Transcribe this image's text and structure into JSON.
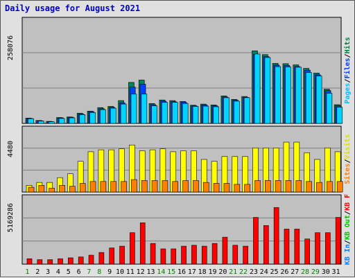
{
  "title": "Daily usage for August 2021",
  "chart_data": [
    {
      "type": "bar",
      "categories": [
        "1",
        "2",
        "3",
        "4",
        "5",
        "6",
        "7",
        "8",
        "9",
        "10",
        "11",
        "12",
        "13",
        "14",
        "15",
        "16",
        "17",
        "18",
        "19",
        "20",
        "21",
        "22",
        "23",
        "24",
        "25",
        "26",
        "27",
        "28",
        "29",
        "30",
        "31"
      ],
      "weekend_days": [
        "1",
        "7",
        "8",
        "14",
        "15",
        "21",
        "22",
        "28",
        "29"
      ],
      "ymax_label": "258076",
      "ymax": 258076,
      "right_labels": [
        {
          "text": "Hits",
          "color": "#008040"
        },
        {
          "text": "/",
          "color": "#000000"
        },
        {
          "text": "Files",
          "color": "#0040ff"
        },
        {
          "text": "/",
          "color": "#000000"
        },
        {
          "text": "Pages",
          "color": "#00c0ff"
        }
      ],
      "series": [
        {
          "name": "Hits",
          "color": "#00805c",
          "values": [
            18000,
            10000,
            7000,
            20000,
            22000,
            35000,
            42000,
            54000,
            58000,
            78000,
            140000,
            148000,
            68000,
            80000,
            78000,
            75000,
            62000,
            66000,
            63000,
            94000,
            82000,
            92000,
            248000,
            235000,
            205000,
            204000,
            200000,
            188000,
            172000,
            117000,
            64000
          ]
        },
        {
          "name": "Files",
          "color": "#0040ff",
          "values": [
            17000,
            9000,
            6000,
            19000,
            21000,
            32000,
            40000,
            50000,
            55000,
            70000,
            124000,
            134000,
            64000,
            76000,
            74000,
            72000,
            60000,
            63000,
            60000,
            90000,
            79000,
            89000,
            236000,
            228000,
            199000,
            198000,
            194000,
            182000,
            166000,
            112000,
            60000
          ]
        },
        {
          "name": "Pages",
          "color": "#00d4ff",
          "values": [
            16000,
            8000,
            5500,
            17000,
            19000,
            30000,
            37000,
            47000,
            52000,
            66000,
            100000,
            100000,
            60000,
            72000,
            72000,
            68000,
            58000,
            59000,
            57000,
            88000,
            76000,
            88000,
            237000,
            225000,
            194000,
            193000,
            192000,
            174000,
            162000,
            103000,
            55000
          ]
        }
      ]
    },
    {
      "type": "bar",
      "categories": [
        "1",
        "2",
        "3",
        "4",
        "5",
        "6",
        "7",
        "8",
        "9",
        "10",
        "11",
        "12",
        "13",
        "14",
        "15",
        "16",
        "17",
        "18",
        "19",
        "20",
        "21",
        "22",
        "23",
        "24",
        "25",
        "26",
        "27",
        "28",
        "29",
        "30",
        "31"
      ],
      "ymax_label": "4480",
      "ymax": 4480,
      "right_labels": [
        {
          "text": "Visits",
          "color": "#e0e000"
        },
        {
          "text": "/",
          "color": "#000000"
        },
        {
          "text": "Sites",
          "color": "#ff8000"
        }
      ],
      "series": [
        {
          "name": "Visits",
          "color": "#ffff00",
          "values": [
            700,
            1000,
            1000,
            1500,
            1900,
            3200,
            4200,
            4400,
            4400,
            4500,
            4900,
            4300,
            4400,
            4500,
            4200,
            4300,
            4300,
            3400,
            3200,
            3700,
            3700,
            3700,
            4600,
            4600,
            4600,
            5200,
            5200,
            4100,
            3400,
            4600,
            4200
          ]
        },
        {
          "name": "Sites",
          "color": "#ff8000",
          "values": [
            500,
            700,
            400,
            700,
            600,
            900,
            1100,
            1100,
            1100,
            1100,
            1300,
            1200,
            1200,
            1200,
            1100,
            1200,
            1200,
            1000,
            900,
            900,
            800,
            800,
            1200,
            1200,
            1200,
            1200,
            1200,
            1100,
            1000,
            1100,
            1100
          ]
        }
      ]
    },
    {
      "type": "bar",
      "categories": [
        "1",
        "2",
        "3",
        "4",
        "5",
        "6",
        "7",
        "8",
        "9",
        "10",
        "11",
        "12",
        "13",
        "14",
        "15",
        "16",
        "17",
        "18",
        "19",
        "20",
        "21",
        "22",
        "23",
        "24",
        "25",
        "26",
        "27",
        "28",
        "29",
        "30",
        "31"
      ],
      "ymax_label": "5169286",
      "ymax": 5169286,
      "right_labels": [
        {
          "text": "KB F",
          "color": "#ff0000"
        },
        {
          "text": "/",
          "color": "#000000"
        },
        {
          "text": "KB Out",
          "color": "#00c000"
        },
        {
          "text": "/",
          "color": "#000000"
        },
        {
          "text": "KB In",
          "color": "#0080ff"
        }
      ],
      "series": [
        {
          "name": "KB F",
          "color": "#ff0000",
          "values": [
            600000,
            500000,
            500000,
            600000,
            700000,
            800000,
            1000000,
            1300000,
            1800000,
            2000000,
            3500000,
            4600000,
            2300000,
            1700000,
            1700000,
            2000000,
            2100000,
            2000000,
            2300000,
            3000000,
            2100000,
            2000000,
            5200000,
            4300000,
            6300000,
            3900000,
            3900000,
            2800000,
            3500000,
            3500000,
            5200000
          ]
        }
      ]
    }
  ]
}
